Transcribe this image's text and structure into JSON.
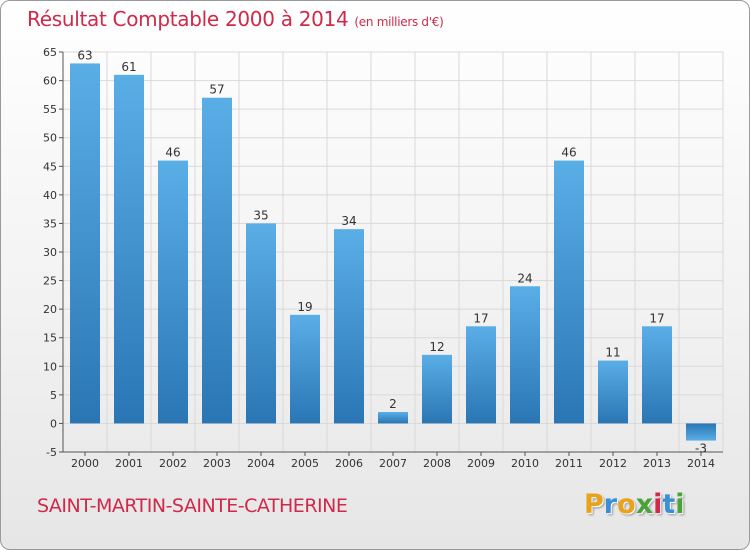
{
  "header": {
    "title": "Résultat Comptable 2000 à 2014",
    "unit": "(en milliers d'€)"
  },
  "footer": {
    "commune": "SAINT-MARTIN-SAINTE-CATHERINE",
    "brand": "Proxiti"
  },
  "colors": {
    "title": "#d0294a",
    "bar_top": "#5aaee6",
    "bar_bottom": "#2a76b4",
    "grid": "#d9d9d9"
  },
  "chart_data": {
    "type": "bar",
    "title": "Résultat Comptable 2000 à 2014",
    "subtitle": "(en milliers d'€)",
    "categories": [
      "2000",
      "2001",
      "2002",
      "2003",
      "2004",
      "2005",
      "2006",
      "2007",
      "2008",
      "2009",
      "2010",
      "2011",
      "2012",
      "2013",
      "2014"
    ],
    "values": [
      63,
      61,
      46,
      57,
      35,
      19,
      34,
      2,
      12,
      17,
      24,
      46,
      11,
      17,
      -3
    ],
    "ylim": [
      -5,
      65
    ],
    "yticks": [
      -5,
      0,
      5,
      10,
      15,
      20,
      25,
      30,
      35,
      40,
      45,
      50,
      55,
      60,
      65
    ],
    "grid": true,
    "data_labels": true
  }
}
